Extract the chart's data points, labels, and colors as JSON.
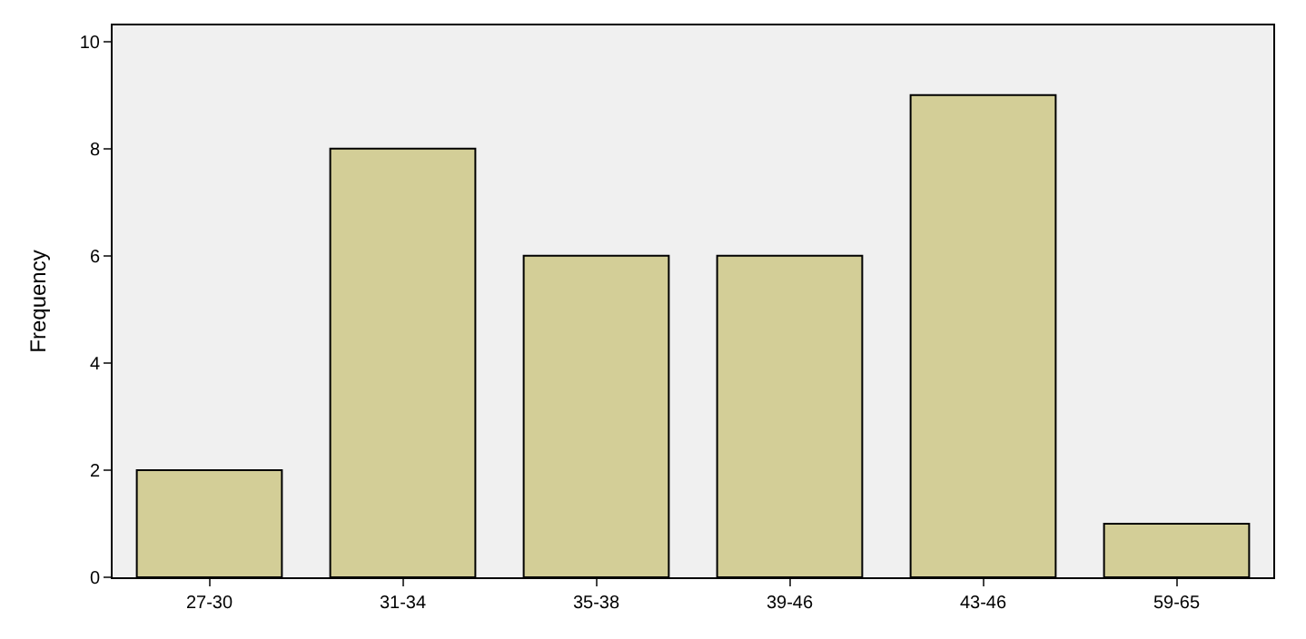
{
  "chart_data": {
    "type": "bar",
    "ylabel": "Frequency",
    "categories": [
      "27-30",
      "31-34",
      "35-38",
      "39-46",
      "43-46",
      "59-65"
    ],
    "values": [
      2,
      8,
      6,
      6,
      9,
      1
    ],
    "color": "#d3ce97",
    "ylim": [
      0,
      10.3
    ],
    "yticks": [
      0,
      2,
      4,
      6,
      8,
      10
    ],
    "grid": false
  }
}
